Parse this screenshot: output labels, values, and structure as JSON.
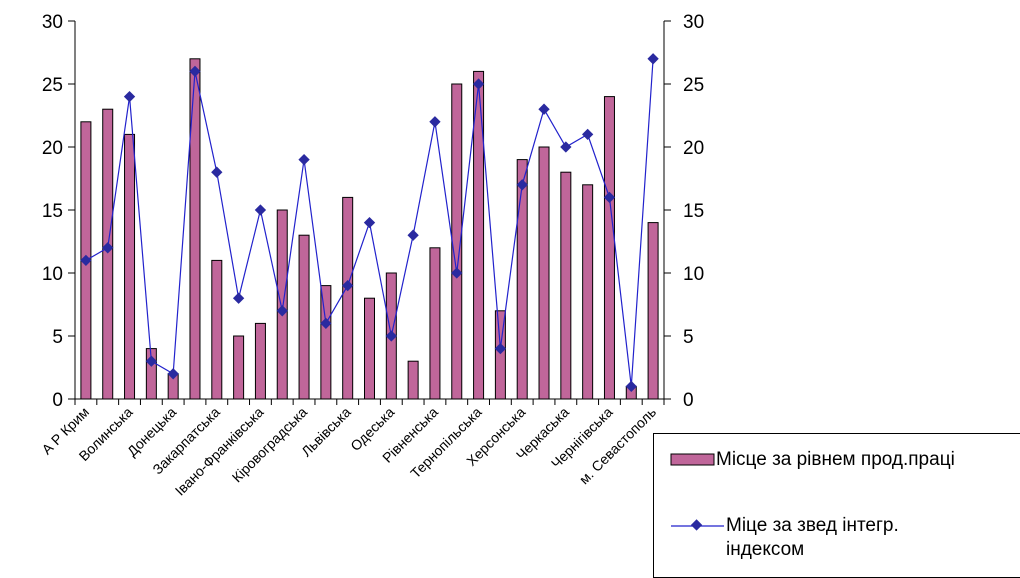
{
  "chart_data": {
    "type": "bar+line",
    "categories": [
      "А Р Крим",
      "",
      "Волинська",
      "",
      "Донецька",
      "",
      "Закарпатська",
      "",
      "Івано-Франківська",
      "",
      "Кіровоградська",
      "",
      "Львівська",
      "",
      "Одеська",
      "",
      "Рівненська",
      "",
      "Тернопільська",
      "",
      "Херсонська",
      "",
      "Черкаська",
      "",
      "Чернігівська",
      "",
      "м. Севастополь"
    ],
    "series": [
      {
        "name": "Місце за рівнем прод.праці",
        "kind": "bar",
        "axis": "left",
        "color": "#c0669a",
        "values": [
          22,
          23,
          21,
          4,
          2,
          27,
          11,
          5,
          6,
          15,
          13,
          9,
          16,
          8,
          10,
          3,
          12,
          25,
          26,
          7,
          19,
          20,
          18,
          17,
          24,
          1,
          14
        ]
      },
      {
        "name": "Міце за звед інтегр. індексом",
        "kind": "line",
        "axis": "right",
        "color": "#2222cc",
        "values": [
          11,
          12,
          24,
          3,
          2,
          26,
          18,
          8,
          15,
          7,
          19,
          6,
          9,
          14,
          5,
          13,
          22,
          10,
          25,
          4,
          17,
          23,
          20,
          21,
          16,
          1,
          27
        ]
      }
    ],
    "y_left": {
      "min": 0,
      "max": 30,
      "ticks": [
        "0",
        "5",
        "10",
        "15",
        "20",
        "25",
        "30"
      ]
    },
    "y_right": {
      "min": 0,
      "max": 30,
      "ticks": [
        "0",
        "5",
        "10",
        "15",
        "20",
        "25",
        "30"
      ]
    },
    "grid": false,
    "legend_position": "bottom-right"
  },
  "legend": {
    "bar_label": "Місце за рівнем прод.праці",
    "line_label": "Міце за звед інтегр. індексом"
  }
}
